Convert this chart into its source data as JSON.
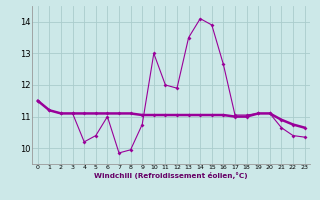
{
  "xlabel": "Windchill (Refroidissement éolien,°C)",
  "background_color": "#cce8e8",
  "grid_color": "#aacccc",
  "line_color": "#990099",
  "hours": [
    0,
    1,
    2,
    3,
    4,
    5,
    6,
    7,
    8,
    9,
    10,
    11,
    12,
    13,
    14,
    15,
    16,
    17,
    18,
    19,
    20,
    21,
    22,
    23
  ],
  "temp": [
    11.5,
    11.2,
    11.1,
    11.1,
    10.2,
    10.4,
    11.0,
    9.85,
    9.95,
    10.75,
    13.0,
    12.0,
    11.9,
    13.5,
    14.1,
    13.9,
    12.65,
    11.05,
    11.05,
    11.1,
    11.1,
    10.65,
    10.4,
    10.35
  ],
  "windchill": [
    11.5,
    11.2,
    11.1,
    11.1,
    11.1,
    11.1,
    11.1,
    11.1,
    11.1,
    11.05,
    11.05,
    11.05,
    11.05,
    11.05,
    11.05,
    11.05,
    11.05,
    11.0,
    11.0,
    11.1,
    11.1,
    10.9,
    10.75,
    10.65
  ],
  "ylim": [
    9.5,
    14.5
  ],
  "yticks": [
    10,
    11,
    12,
    13,
    14
  ],
  "xticks": [
    0,
    1,
    2,
    3,
    4,
    5,
    6,
    7,
    8,
    9,
    10,
    11,
    12,
    13,
    14,
    15,
    16,
    17,
    18,
    19,
    20,
    21,
    22,
    23
  ],
  "xlim": [
    -0.5,
    23.5
  ],
  "figwidth": 3.2,
  "figheight": 2.0,
  "dpi": 100
}
